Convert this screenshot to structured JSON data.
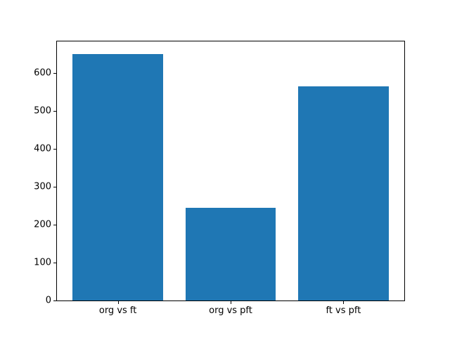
{
  "figure": {
    "background": "#ffffff",
    "text_color": "#000000"
  },
  "chart_data": {
    "type": "bar",
    "title": "",
    "xlabel": "",
    "ylabel": "",
    "categories": [
      "org vs ft",
      "org vs pft",
      "ft vs pft"
    ],
    "values": [
      650,
      245,
      565
    ],
    "bar_color": "#1f77b4",
    "bar_width_units": 0.8,
    "xlim": [
      -0.54,
      2.54
    ],
    "ylim": [
      0,
      682.5
    ],
    "yticks": [
      0,
      100,
      200,
      300,
      400,
      500,
      600
    ],
    "grid": false,
    "legend": null
  }
}
